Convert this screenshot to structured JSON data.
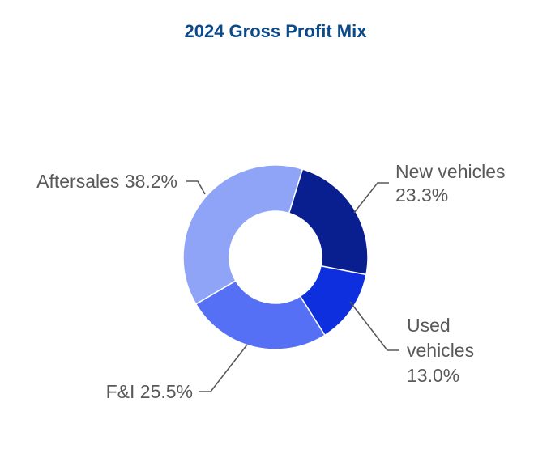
{
  "chart_data": {
    "type": "pie",
    "title": "2024 Gross Profit Mix",
    "series": [
      {
        "name": "New vehicles",
        "value": 23.3,
        "color": "#0a1f8f",
        "label_lines": [
          "New vehicles",
          "23.3%"
        ]
      },
      {
        "name": "Used vehicles",
        "value": 13.0,
        "color": "#0e2fdd",
        "label_lines": [
          "Used",
          "vehicles",
          "13.0%"
        ]
      },
      {
        "name": "F&I",
        "value": 25.5,
        "color": "#5670f5",
        "label_lines": [
          "F&I 25.5%"
        ]
      },
      {
        "name": "Aftersales",
        "value": 38.2,
        "color": "#8fa3f7",
        "label_lines": [
          "Aftersales 38.2%"
        ]
      }
    ]
  }
}
